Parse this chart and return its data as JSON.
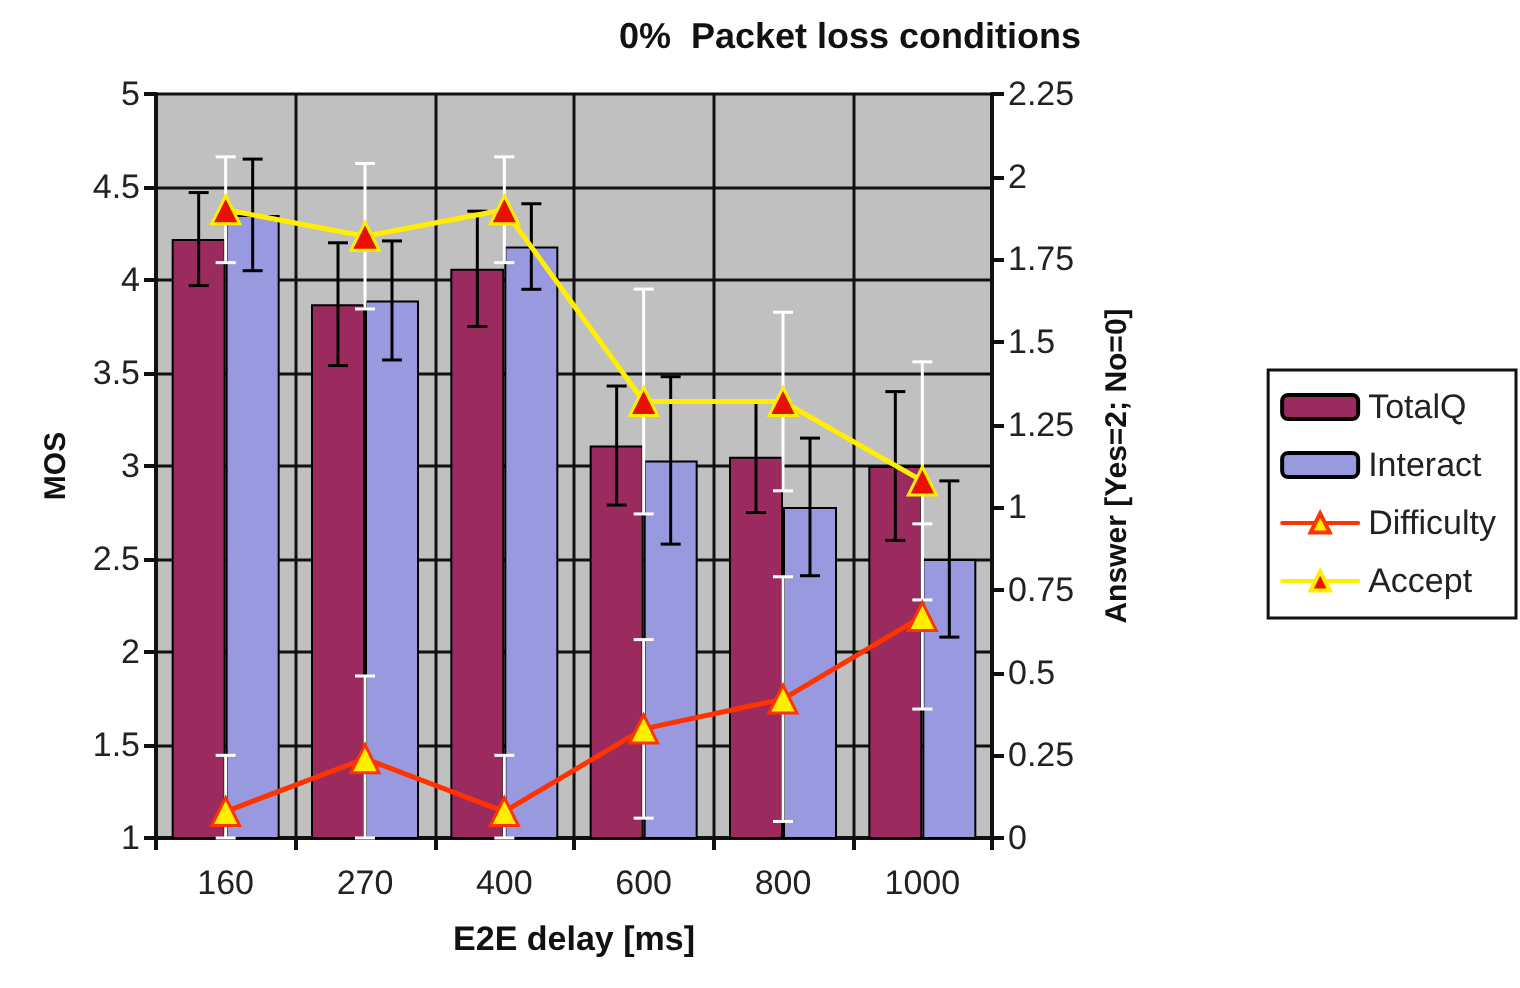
{
  "chart_data": {
    "type": "bar",
    "title": "0%  Packet loss conditions",
    "xlabel": "E2E delay [ms]",
    "ylabel": "MOS",
    "y2label": "Answer [Yes=2; No=0]",
    "categories": [
      "160",
      "270",
      "400",
      "600",
      "800",
      "1000"
    ],
    "series": [
      {
        "name": "TotalQ",
        "color": "#9b2a5f",
        "values": [
          4.22,
          3.87,
          4.06,
          3.11,
          3.05,
          3.0
        ],
        "errors": [
          0.25,
          0.33,
          0.31,
          0.32,
          0.3,
          0.4
        ]
      },
      {
        "name": "Interact",
        "color": "#9999e0",
        "values": [
          4.35,
          3.89,
          4.18,
          3.03,
          2.78,
          2.5
        ],
        "errors": [
          0.3,
          0.32,
          0.23,
          0.45,
          0.37,
          0.42
        ]
      },
      {
        "name": "Difficulty",
        "type": "line",
        "axis": "y2",
        "color": "#ff3300",
        "values": [
          0.08,
          0.24,
          0.08,
          0.33,
          0.42,
          0.67
        ],
        "errors": [
          [
            0,
            0.25
          ],
          [
            0,
            0.49
          ],
          [
            0,
            0.25
          ],
          0.27,
          0.37,
          0.28
        ]
      },
      {
        "name": "Accept",
        "type": "line",
        "axis": "y2",
        "color": "#ffee00",
        "values": [
          1.9,
          1.82,
          1.9,
          1.32,
          1.32,
          1.08
        ],
        "errors": [
          0.16,
          0.22,
          0.16,
          0.34,
          0.27,
          0.36
        ]
      }
    ],
    "ylim": [
      1,
      5
    ],
    "yticks": [
      1,
      1.5,
      2,
      2.5,
      3,
      3.5,
      4,
      4.5,
      5
    ],
    "y2lim": [
      0,
      2.25
    ],
    "y2ticks": [
      0,
      0.25,
      0.5,
      0.75,
      1,
      1.25,
      1.5,
      1.75,
      2,
      2.25
    ],
    "grid": true,
    "legend": "right",
    "marker": "triangle",
    "line_style": "solid"
  }
}
